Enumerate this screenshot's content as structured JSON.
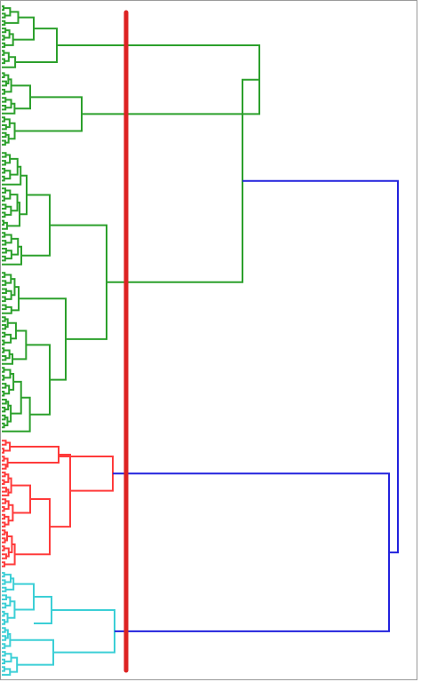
{
  "colors": {
    "green": "#2ca02c",
    "red": "#ff3b3b",
    "cyan": "#3ccfd6",
    "blue": "#2222dd",
    "cut": "#dd2222",
    "frame": "#9a9a9a"
  },
  "dendrogram": {
    "orientation": "horizontal",
    "labels_shown": false,
    "leaves_per_cluster": {
      "green": 110,
      "red": 36,
      "cyan": 28
    },
    "cut_line_visible": true,
    "colors_in_order": [
      "green",
      "red",
      "cyan"
    ]
  }
}
